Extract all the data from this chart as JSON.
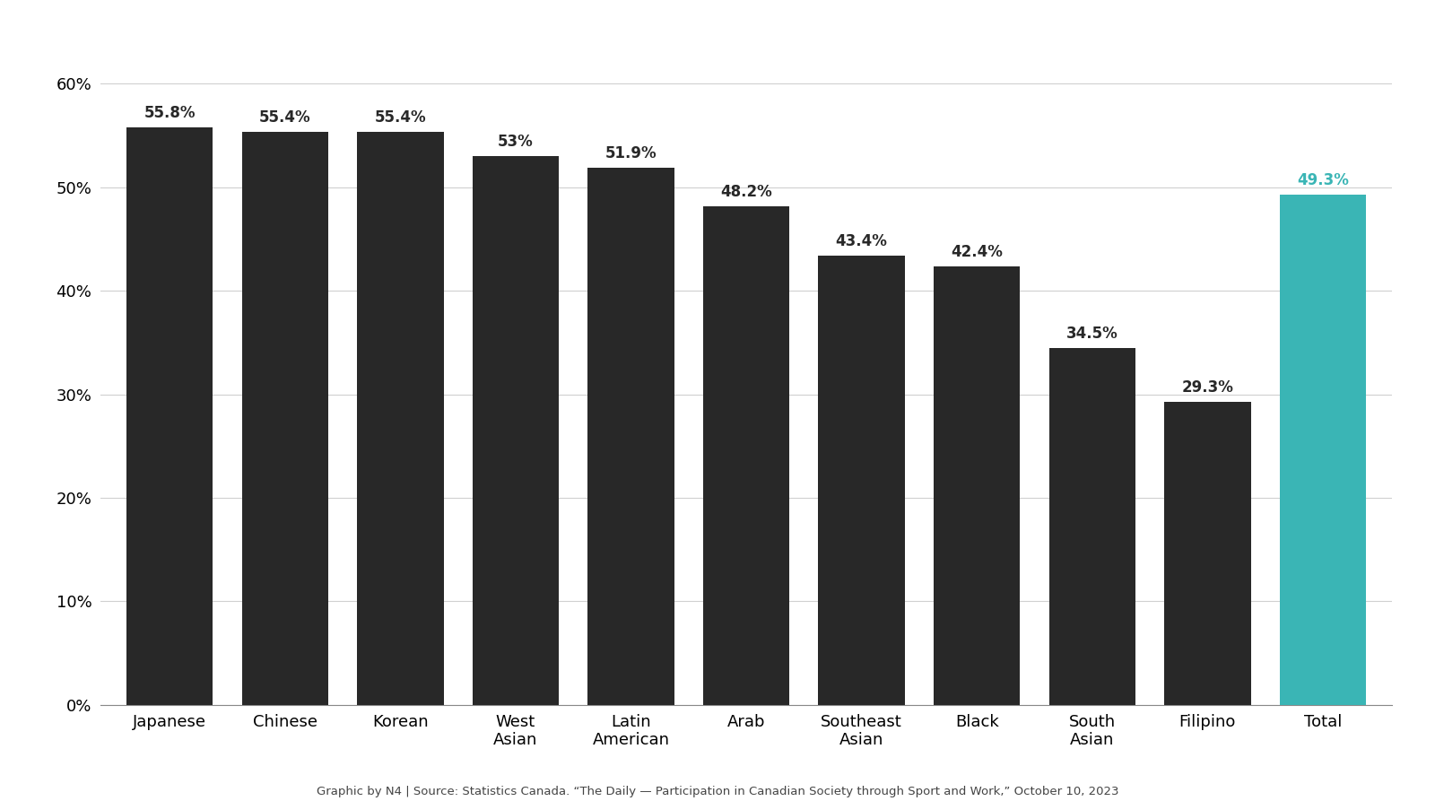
{
  "categories": [
    "Japanese",
    "Chinese",
    "Korean",
    "West\nAsian",
    "Latin\nAmerican",
    "Arab",
    "Southeast\nAsian",
    "Black",
    "South\nAsian",
    "Filipino",
    "Total"
  ],
  "values": [
    55.8,
    55.4,
    55.4,
    53.0,
    51.9,
    48.2,
    43.4,
    42.4,
    34.5,
    29.3,
    49.3
  ],
  "labels": [
    "55.8%",
    "55.4%",
    "55.4%",
    "53%",
    "51.9%",
    "48.2%",
    "43.4%",
    "42.4%",
    "34.5%",
    "29.3%",
    "49.3%"
  ],
  "bar_colors": [
    "#282828",
    "#282828",
    "#282828",
    "#282828",
    "#282828",
    "#282828",
    "#282828",
    "#282828",
    "#282828",
    "#282828",
    "#3ab5b5"
  ],
  "label_colors": [
    "#282828",
    "#282828",
    "#282828",
    "#282828",
    "#282828",
    "#282828",
    "#282828",
    "#282828",
    "#282828",
    "#282828",
    "#3ab5b5"
  ],
  "ylim": [
    0,
    65
  ],
  "yticks": [
    0,
    10,
    20,
    30,
    40,
    50,
    60
  ],
  "ytick_labels": [
    "0%",
    "10%",
    "20%",
    "30%",
    "40%",
    "50%",
    "60%"
  ],
  "background_color": "#ffffff",
  "grid_color": "#d0d0d0",
  "bar_label_fontsize": 12,
  "tick_fontsize": 13,
  "bar_width": 0.75,
  "source_text": "Graphic by N4 | Source: Statistics Canada. “The Daily — Participation in Canadian Society through Sport and Work,” October 10, 2023",
  "source_fontsize": 9.5
}
